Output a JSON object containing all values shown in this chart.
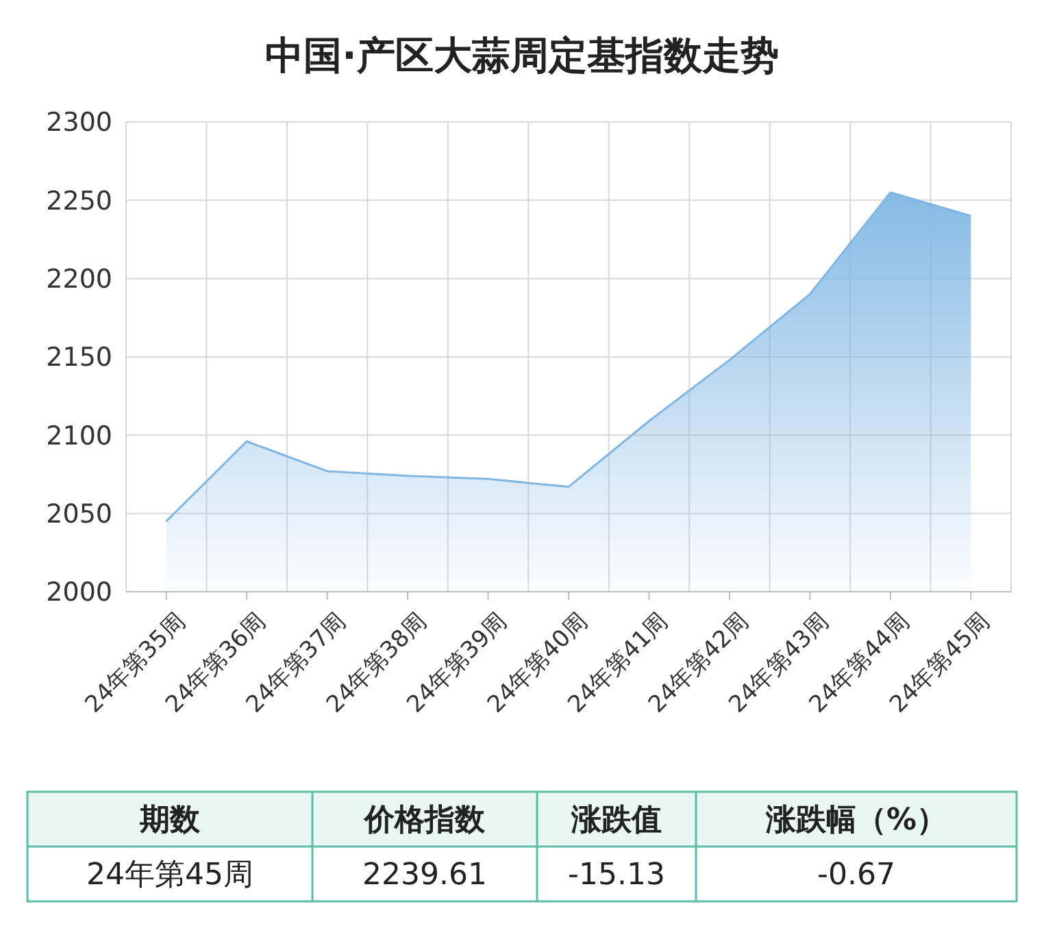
{
  "chart_data": {
    "type": "area",
    "title": "中国·产区大蒜周定基指数走势",
    "categories": [
      "24年第35周",
      "24年第36周",
      "24年第37周",
      "24年第38周",
      "24年第39周",
      "24年第40周",
      "24年第41周",
      "24年第42周",
      "24年第43周",
      "24年第44周",
      "24年第45周"
    ],
    "series": [
      {
        "color": "#7fb6e3",
        "values": [
          2045,
          2096,
          2077,
          2074,
          2072,
          2067,
          2109,
          2148,
          2190,
          2255,
          2240
        ]
      }
    ],
    "ylim": [
      2000,
      2300
    ],
    "yticks": [
      2000,
      2050,
      2100,
      2150,
      2200,
      2250,
      2300
    ],
    "grid": true,
    "annotations": [
      "期数",
      "价格指数",
      "涨跌值",
      "涨跌幅（%）",
      "24年第45周",
      "2239.61",
      "-15.13",
      "-0.67"
    ]
  }
}
